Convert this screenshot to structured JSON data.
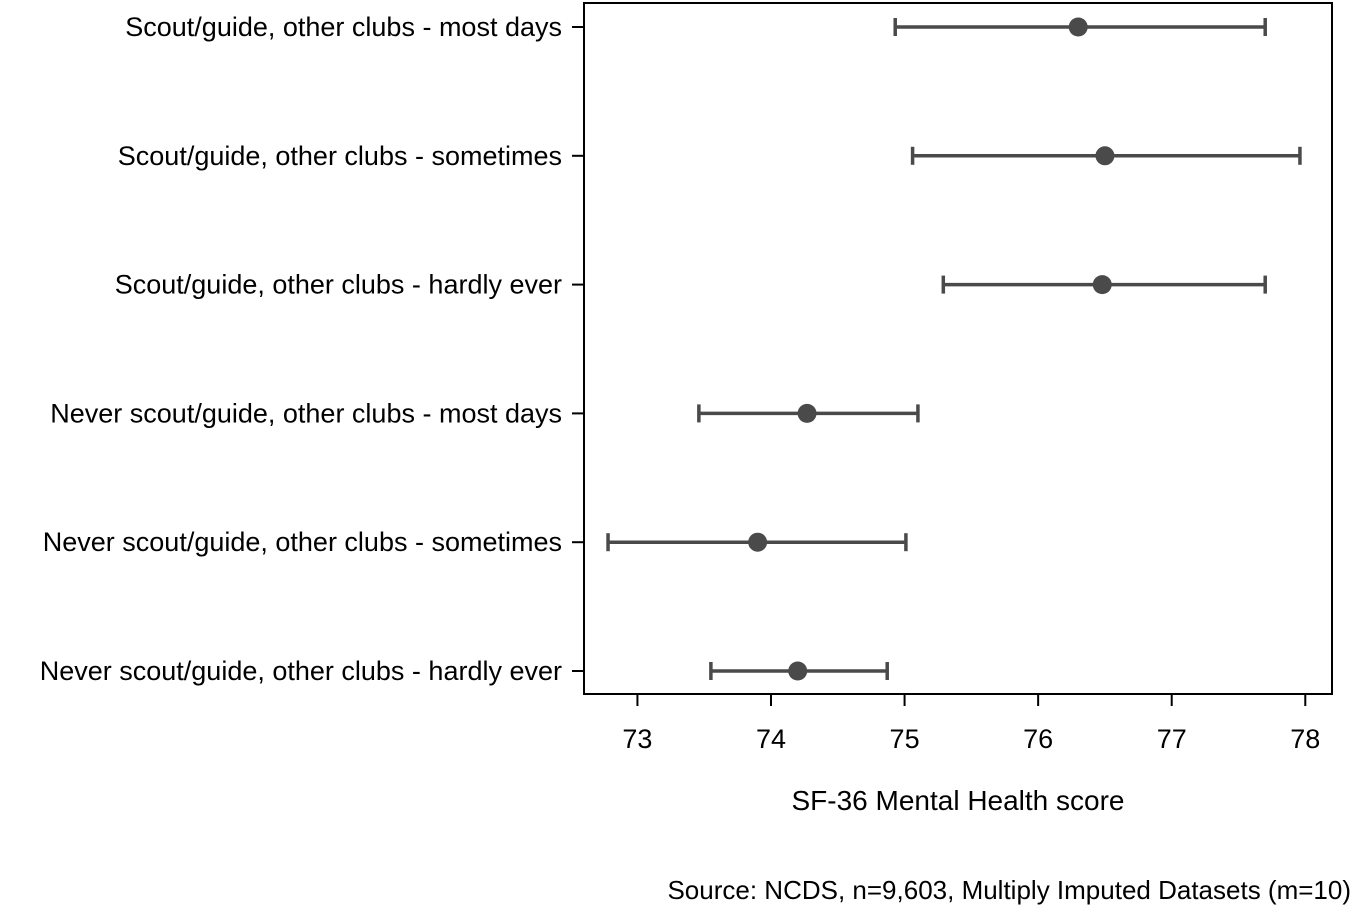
{
  "chart_data": {
    "type": "scatter",
    "subtype": "coefficient plot with horizontal confidence intervals",
    "xlabel": "SF-36 Mental Health score",
    "ylabel": "",
    "xlim": [
      72.6,
      78.2
    ],
    "x_ticks": [
      73,
      74,
      75,
      76,
      77,
      78
    ],
    "grid": false,
    "legend": "none",
    "point_color": "#4a4a4a",
    "categories": [
      "Scout/guide, other clubs - most days",
      "Scout/guide, other clubs - sometimes",
      "Scout/guide, other clubs - hardly ever",
      "Never scout/guide, other clubs - most days",
      "Never scout/guide, other clubs - sometimes",
      "Never scout/guide, other clubs - hardly ever"
    ],
    "estimates": [
      76.3,
      76.5,
      76.48,
      74.27,
      73.9,
      74.2
    ],
    "ci_lower": [
      74.93,
      75.06,
      75.29,
      73.46,
      72.78,
      73.55
    ],
    "ci_upper": [
      77.7,
      77.96,
      77.7,
      75.1,
      75.01,
      74.87
    ],
    "source": "Source: NCDS, n=9,603, Multiply Imputed Datasets (m=10)"
  }
}
